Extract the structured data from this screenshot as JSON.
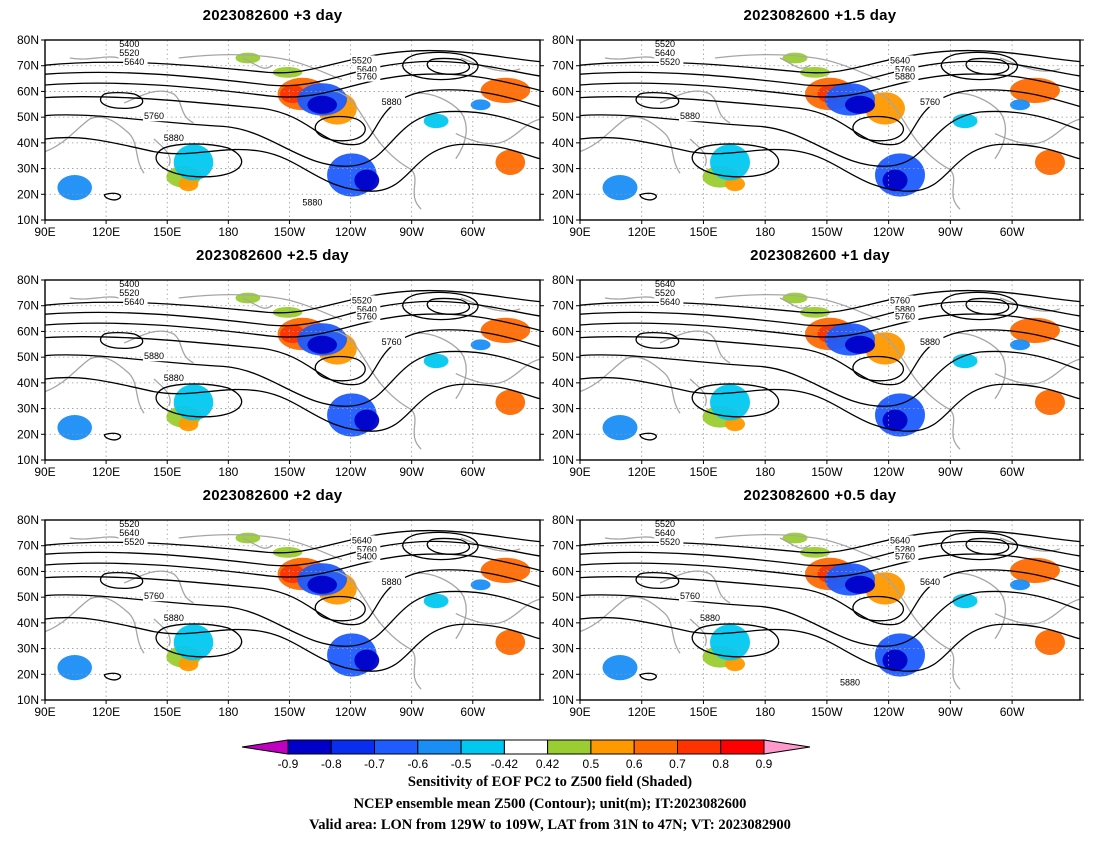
{
  "panels": [
    {
      "id": "p1",
      "title": "2023082600  +3 day",
      "contour_labels": [
        "5400",
        "5520",
        "5640",
        "5520",
        "5640",
        "5760",
        "5880",
        "5760",
        "5880",
        "5880"
      ]
    },
    {
      "id": "p2",
      "title": "2023082600  +1.5 day",
      "contour_labels": [
        "5520",
        "5640",
        "5520",
        "5640",
        "5760",
        "5880",
        "5760",
        "5880"
      ]
    },
    {
      "id": "p3",
      "title": "2023082600  +2.5 day",
      "contour_labels": [
        "5400",
        "5520",
        "5640",
        "5520",
        "5640",
        "5760",
        "5760",
        "5880",
        "5880"
      ]
    },
    {
      "id": "p4",
      "title": "2023082600  +1 day",
      "contour_labels": [
        "5640",
        "5520",
        "5640",
        "5760",
        "5880",
        "5760",
        "5880"
      ]
    },
    {
      "id": "p5",
      "title": "2023082600  +2 day",
      "contour_labels": [
        "5520",
        "5640",
        "5520",
        "5640",
        "5760",
        "5400",
        "5880",
        "5760",
        "5880"
      ]
    },
    {
      "id": "p6",
      "title": "2023082600  +0.5 day",
      "contour_labels": [
        "5520",
        "5640",
        "5520",
        "5640",
        "5280",
        "5760",
        "5640",
        "5760",
        "5880",
        "5880"
      ]
    }
  ],
  "axes": {
    "lat_labels": [
      "80N",
      "70N",
      "60N",
      "50N",
      "40N",
      "30N",
      "20N",
      "10N"
    ],
    "lon_labels": [
      "90E",
      "120E",
      "150E",
      "180",
      "150W",
      "120W",
      "90W",
      "60W"
    ]
  },
  "colorbar": {
    "labels": [
      "-0.9",
      "-0.8",
      "-0.7",
      "-0.6",
      "-0.5",
      "-0.42",
      "0.42",
      "0.5",
      "0.6",
      "0.7",
      "0.8",
      "0.9"
    ],
    "colors": [
      "#c000c0",
      "#0000c8",
      "#0a2ef0",
      "#1e5cff",
      "#1a8ef5",
      "#00c8f0",
      "#ffffff",
      "#9acd32",
      "#ff9900",
      "#ff6a00",
      "#ff3300",
      "#ff0000",
      "#ff99cc"
    ]
  },
  "caption": {
    "line1": "Sensitivity of EOF PC2 to Z500 field (Shaded)",
    "line2": "NCEP ensemble mean Z500 (Contour); unit(m); IT:2023082600",
    "line3": "Valid area: LON from 129W to 109W, LAT from 31N to 47N; VT: 2023082900"
  }
}
